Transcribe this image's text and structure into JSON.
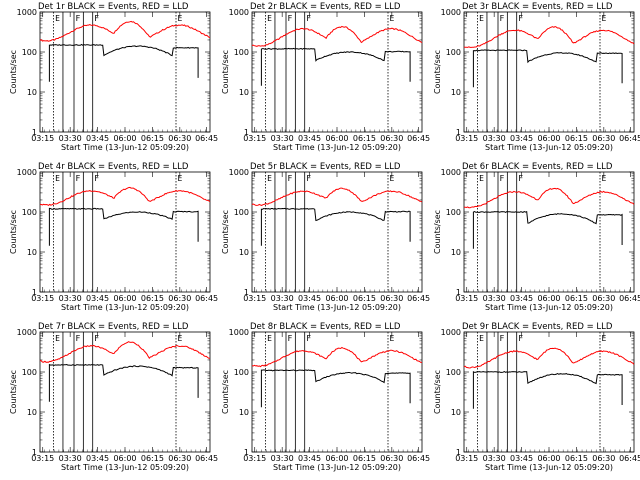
{
  "chart_data": [
    {
      "type": "line",
      "title": "Det 1r BLACK = Events, RED = LLD",
      "xlabel": "Start Time (13-Jun-12 05:09:20)",
      "ylabel": "Counts/sec",
      "x_ticks": [
        "03:15",
        "03:30",
        "03:45",
        "06:00",
        "06:15",
        "06:30",
        "06:45"
      ],
      "y_ticks": [
        "1",
        "10",
        "100",
        "1000"
      ],
      "ylim": [
        1,
        1000
      ],
      "scale": "log",
      "series": [
        {
          "name": "Events",
          "color": "#000000",
          "base": 150,
          "mid": 80,
          "peak": 140
        },
        {
          "name": "LLD",
          "color": "#ff0000",
          "low": 190,
          "high": 470,
          "peak": 580
        }
      ],
      "markers": [
        "E",
        "F",
        "F",
        "E"
      ]
    },
    {
      "type": "line",
      "title": "Det 2r BLACK = Events, RED = LLD",
      "xlabel": "Start Time (13-Jun-12 05:09:20)",
      "ylabel": "Counts/sec",
      "x_ticks": [
        "03:15",
        "03:30",
        "03:45",
        "06:00",
        "06:15",
        "06:30",
        "06:45"
      ],
      "y_ticks": [
        "1",
        "10",
        "100",
        "1000"
      ],
      "ylim": [
        1,
        1000
      ],
      "scale": "log",
      "series": [
        {
          "name": "Events",
          "color": "#000000",
          "base": 120,
          "mid": 60,
          "peak": 100
        },
        {
          "name": "LLD",
          "color": "#ff0000",
          "low": 140,
          "high": 380,
          "peak": 430
        }
      ],
      "markers": [
        "E",
        "F",
        "F",
        "E"
      ]
    },
    {
      "type": "line",
      "title": "Det 3r BLACK = Events, RED = LLD",
      "xlabel": "Start Time (13-Jun-12 05:09:20)",
      "ylabel": "Counts/sec",
      "x_ticks": [
        "03:15",
        "03:30",
        "03:45",
        "06:00",
        "06:15",
        "06:30",
        "06:45"
      ],
      "y_ticks": [
        "1",
        "10",
        "100",
        "1000"
      ],
      "ylim": [
        1,
        1000
      ],
      "scale": "log",
      "series": [
        {
          "name": "Events",
          "color": "#000000",
          "base": 110,
          "mid": 55,
          "peak": 95
        },
        {
          "name": "LLD",
          "color": "#ff0000",
          "low": 130,
          "high": 350,
          "peak": 420
        }
      ],
      "markers": [
        "E",
        "F",
        "F",
        "E"
      ]
    },
    {
      "type": "line",
      "title": "Det 4r BLACK = Events, RED = LLD",
      "xlabel": "Start Time (13-Jun-12 05:09:20)",
      "ylabel": "Counts/sec",
      "x_ticks": [
        "03:15",
        "03:30",
        "03:45",
        "06:00",
        "06:15",
        "06:30",
        "06:45"
      ],
      "y_ticks": [
        "1",
        "10",
        "100",
        "1000"
      ],
      "ylim": [
        1,
        1000
      ],
      "scale": "log",
      "series": [
        {
          "name": "Events",
          "color": "#000000",
          "base": 120,
          "mid": 65,
          "peak": 100
        },
        {
          "name": "LLD",
          "color": "#ff0000",
          "low": 150,
          "high": 340,
          "peak": 400
        }
      ],
      "markers": [
        "E",
        "F",
        "F",
        "E"
      ]
    },
    {
      "type": "line",
      "title": "Det 5r BLACK = Events, RED = LLD",
      "xlabel": "Start Time (13-Jun-12 05:09:20)",
      "ylabel": "Counts/sec",
      "x_ticks": [
        "03:15",
        "03:30",
        "03:45",
        "06:00",
        "06:15",
        "06:30",
        "06:45"
      ],
      "y_ticks": [
        "1",
        "10",
        "100",
        "1000"
      ],
      "ylim": [
        1,
        1000
      ],
      "scale": "log",
      "series": [
        {
          "name": "Events",
          "color": "#000000",
          "base": 120,
          "mid": 60,
          "peak": 100
        },
        {
          "name": "LLD",
          "color": "#ff0000",
          "low": 150,
          "high": 330,
          "peak": 390
        }
      ],
      "markers": [
        "E",
        "F",
        "F",
        "E"
      ]
    },
    {
      "type": "line",
      "title": "Det 6r BLACK = Events, RED = LLD",
      "xlabel": "Start Time (13-Jun-12 05:09:20)",
      "ylabel": "Counts/sec",
      "x_ticks": [
        "03:15",
        "03:30",
        "03:45",
        "06:00",
        "06:15",
        "06:30",
        "06:45"
      ],
      "y_ticks": [
        "1",
        "10",
        "100",
        "1000"
      ],
      "ylim": [
        1,
        1000
      ],
      "scale": "log",
      "series": [
        {
          "name": "Events",
          "color": "#000000",
          "base": 100,
          "mid": 50,
          "peak": 90
        },
        {
          "name": "LLD",
          "color": "#ff0000",
          "low": 130,
          "high": 320,
          "peak": 390
        }
      ],
      "markers": [
        "E",
        "F",
        "F",
        "E"
      ]
    },
    {
      "type": "line",
      "title": "Det 7r BLACK = Events, RED = LLD",
      "xlabel": "Start Time (13-Jun-12 05:09:20)",
      "ylabel": "Counts/sec",
      "x_ticks": [
        "03:15",
        "03:30",
        "03:45",
        "06:00",
        "06:15",
        "06:30",
        "06:45"
      ],
      "y_ticks": [
        "1",
        "10",
        "100",
        "1000"
      ],
      "ylim": [
        1,
        1000
      ],
      "scale": "log",
      "series": [
        {
          "name": "Events",
          "color": "#000000",
          "base": 150,
          "mid": 80,
          "peak": 140
        },
        {
          "name": "LLD",
          "color": "#ff0000",
          "low": 180,
          "high": 450,
          "peak": 560
        }
      ],
      "markers": [
        "E",
        "F",
        "F",
        "E"
      ]
    },
    {
      "type": "line",
      "title": "Det 8r BLACK = Events, RED = LLD",
      "xlabel": "Start Time (13-Jun-12 05:09:20)",
      "ylabel": "Counts/sec",
      "x_ticks": [
        "03:15",
        "03:30",
        "03:45",
        "06:00",
        "06:15",
        "06:30",
        "06:45"
      ],
      "y_ticks": [
        "1",
        "10",
        "100",
        "1000"
      ],
      "ylim": [
        1,
        1000
      ],
      "scale": "log",
      "series": [
        {
          "name": "Events",
          "color": "#000000",
          "base": 110,
          "mid": 55,
          "peak": 95
        },
        {
          "name": "LLD",
          "color": "#ff0000",
          "low": 140,
          "high": 340,
          "peak": 400
        }
      ],
      "markers": [
        "E",
        "F",
        "F",
        "E"
      ]
    },
    {
      "type": "line",
      "title": "Det 9r BLACK = Events, RED = LLD",
      "xlabel": "Start Time (13-Jun-12 05:09:20)",
      "ylabel": "Counts/sec",
      "x_ticks": [
        "03:15",
        "03:30",
        "03:45",
        "06:00",
        "06:15",
        "06:30",
        "06:45"
      ],
      "y_ticks": [
        "1",
        "10",
        "100",
        "1000"
      ],
      "ylim": [
        1,
        1000
      ],
      "scale": "log",
      "series": [
        {
          "name": "Events",
          "color": "#000000",
          "base": 100,
          "mid": 50,
          "peak": 90
        },
        {
          "name": "LLD",
          "color": "#ff0000",
          "low": 130,
          "high": 330,
          "peak": 400
        }
      ],
      "markers": [
        "E",
        "F",
        "F",
        "E"
      ]
    }
  ]
}
